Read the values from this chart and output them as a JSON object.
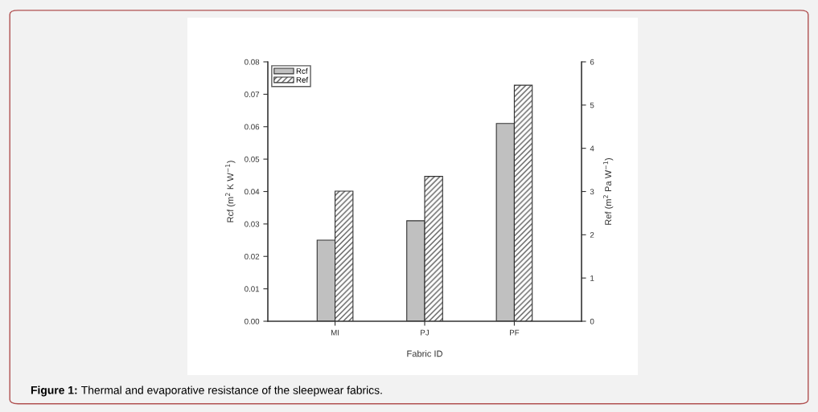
{
  "chart_data": {
    "type": "bar",
    "xlabel": "Fabric ID",
    "ylabel": "Rcf (m$^{2}$ K W$^{−1}$)",
    "y2label": "Ref (m$^{2}$ Pa W$^{−1}$)",
    "categories": [
      "MI",
      "PJ",
      "PF"
    ],
    "series": [
      {
        "name": "Rcf",
        "color": "#c0c0c0",
        "values": [
          0.025,
          0.031,
          0.061
        ]
      },
      {
        "name": "Ref",
        "color": "#333333",
        "axis": "y2",
        "values": [
          3.01,
          3.35,
          5.46
        ]
      }
    ],
    "ylim": [
      0,
      0.08
    ],
    "yticks": [
      {
        "value": 0,
        "label": "0.00"
      },
      {
        "value": 0.01,
        "label": "0.01"
      },
      {
        "value": 0.02,
        "label": "0.02"
      },
      {
        "value": 0.03,
        "label": "0.03"
      },
      {
        "value": 0.04,
        "label": "0.04"
      },
      {
        "value": 0.05,
        "label": "0.05"
      },
      {
        "value": 0.06,
        "label": "0.06"
      },
      {
        "value": 0.07,
        "label": "0.07"
      },
      {
        "value": 0.08,
        "label": "0.08"
      }
    ],
    "y2lim": [
      0,
      6
    ],
    "y2ticks": [
      0,
      1,
      2,
      3,
      4,
      5,
      6
    ],
    "legend": "top left",
    "grid": false,
    "annotations": [
      "Figure 1: Thermal and evaporative resistance of the sleepwear fabrics."
    ]
  }
}
